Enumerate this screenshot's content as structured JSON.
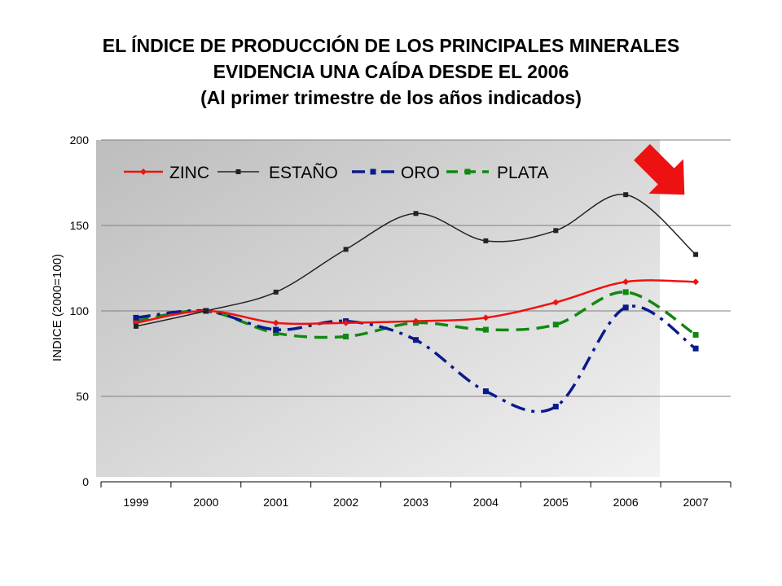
{
  "chart_data": {
    "type": "line",
    "title": [
      "EL ÍNDICE DE PRODUCCIÓN DE LOS PRINCIPALES MINERALES",
      "EVIDENCIA UNA CAÍDA DESDE EL 2006",
      "(Al primer trimestre de los años indicados)"
    ],
    "ylabel": "INDICE (2000=100)",
    "xlabel": "",
    "categories": [
      "1999",
      "2000",
      "2001",
      "2002",
      "2003",
      "2004",
      "2005",
      "2006",
      "2007"
    ],
    "yticks": [
      0,
      50,
      100,
      150,
      200
    ],
    "ylim": [
      0,
      200
    ],
    "grid": true,
    "legend": "top-left",
    "shaded_region": [
      "1999",
      "2006"
    ],
    "series": [
      {
        "name": "ZINC",
        "color": "#ee1111",
        "style": "solid",
        "values": [
          93,
          100,
          93,
          93,
          94,
          96,
          105,
          117,
          117
        ]
      },
      {
        "name": "ESTAÑO",
        "color": "#222222",
        "style": "solid",
        "values": [
          91,
          100,
          111,
          136,
          157,
          141,
          147,
          168,
          133
        ]
      },
      {
        "name": "ORO",
        "color": "#0a1a8c",
        "style": "dashdot",
        "values": [
          96,
          100,
          89,
          94,
          83,
          53,
          44,
          102,
          78
        ]
      },
      {
        "name": "PLATA",
        "color": "#118811",
        "style": "dashed",
        "values": [
          94,
          100,
          87,
          85,
          93,
          89,
          92,
          111,
          86
        ]
      }
    ],
    "arrow": {
      "icon": "down-right-arrow-icon",
      "color": "#ee1111"
    }
  }
}
